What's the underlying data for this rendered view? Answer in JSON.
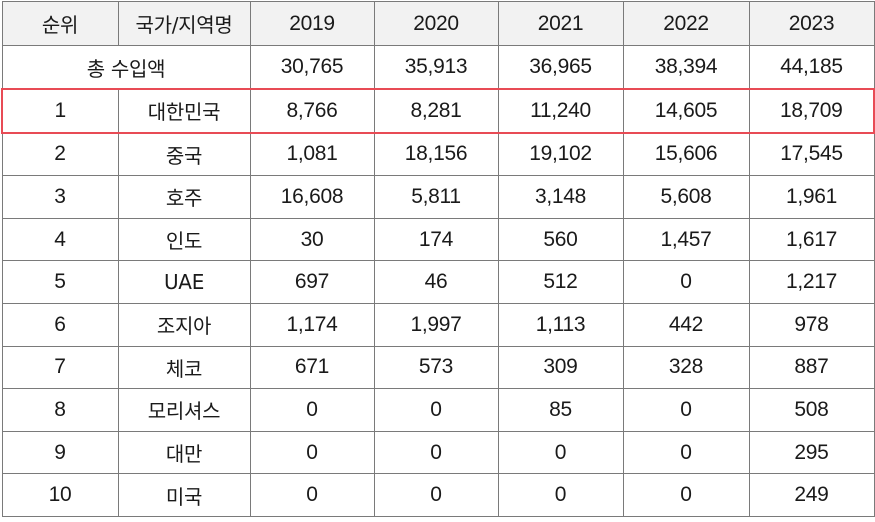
{
  "table": {
    "headers": [
      "순위",
      "국가/지역명",
      "2019",
      "2020",
      "2021",
      "2022",
      "2023"
    ],
    "total": {
      "label": "총 수입액",
      "values": [
        "30,765",
        "35,913",
        "36,965",
        "38,394",
        "44,185"
      ]
    },
    "rows": [
      {
        "rank": "1",
        "country": "대한민국",
        "values": [
          "8,766",
          "8,281",
          "11,240",
          "14,605",
          "18,709"
        ]
      },
      {
        "rank": "2",
        "country": "중국",
        "values": [
          "1,081",
          "18,156",
          "19,102",
          "15,606",
          "17,545"
        ]
      },
      {
        "rank": "3",
        "country": "호주",
        "values": [
          "16,608",
          "5,811",
          "3,148",
          "5,608",
          "1,961"
        ]
      },
      {
        "rank": "4",
        "country": "인도",
        "values": [
          "30",
          "174",
          "560",
          "1,457",
          "1,617"
        ]
      },
      {
        "rank": "5",
        "country": "UAE",
        "values": [
          "697",
          "46",
          "512",
          "0",
          "1,217"
        ]
      },
      {
        "rank": "6",
        "country": "조지아",
        "values": [
          "1,174",
          "1,997",
          "1,113",
          "442",
          "978"
        ]
      },
      {
        "rank": "7",
        "country": "체코",
        "values": [
          "671",
          "573",
          "309",
          "328",
          "887"
        ]
      },
      {
        "rank": "8",
        "country": "모리셔스",
        "values": [
          "0",
          "0",
          "85",
          "0",
          "508"
        ]
      },
      {
        "rank": "9",
        "country": "대만",
        "values": [
          "0",
          "0",
          "0",
          "0",
          "295"
        ]
      },
      {
        "rank": "10",
        "country": "미국",
        "values": [
          "0",
          "0",
          "0",
          "0",
          "249"
        ]
      }
    ],
    "highlight_color": "#e84b55",
    "header_bg": "#f2f2f2"
  }
}
